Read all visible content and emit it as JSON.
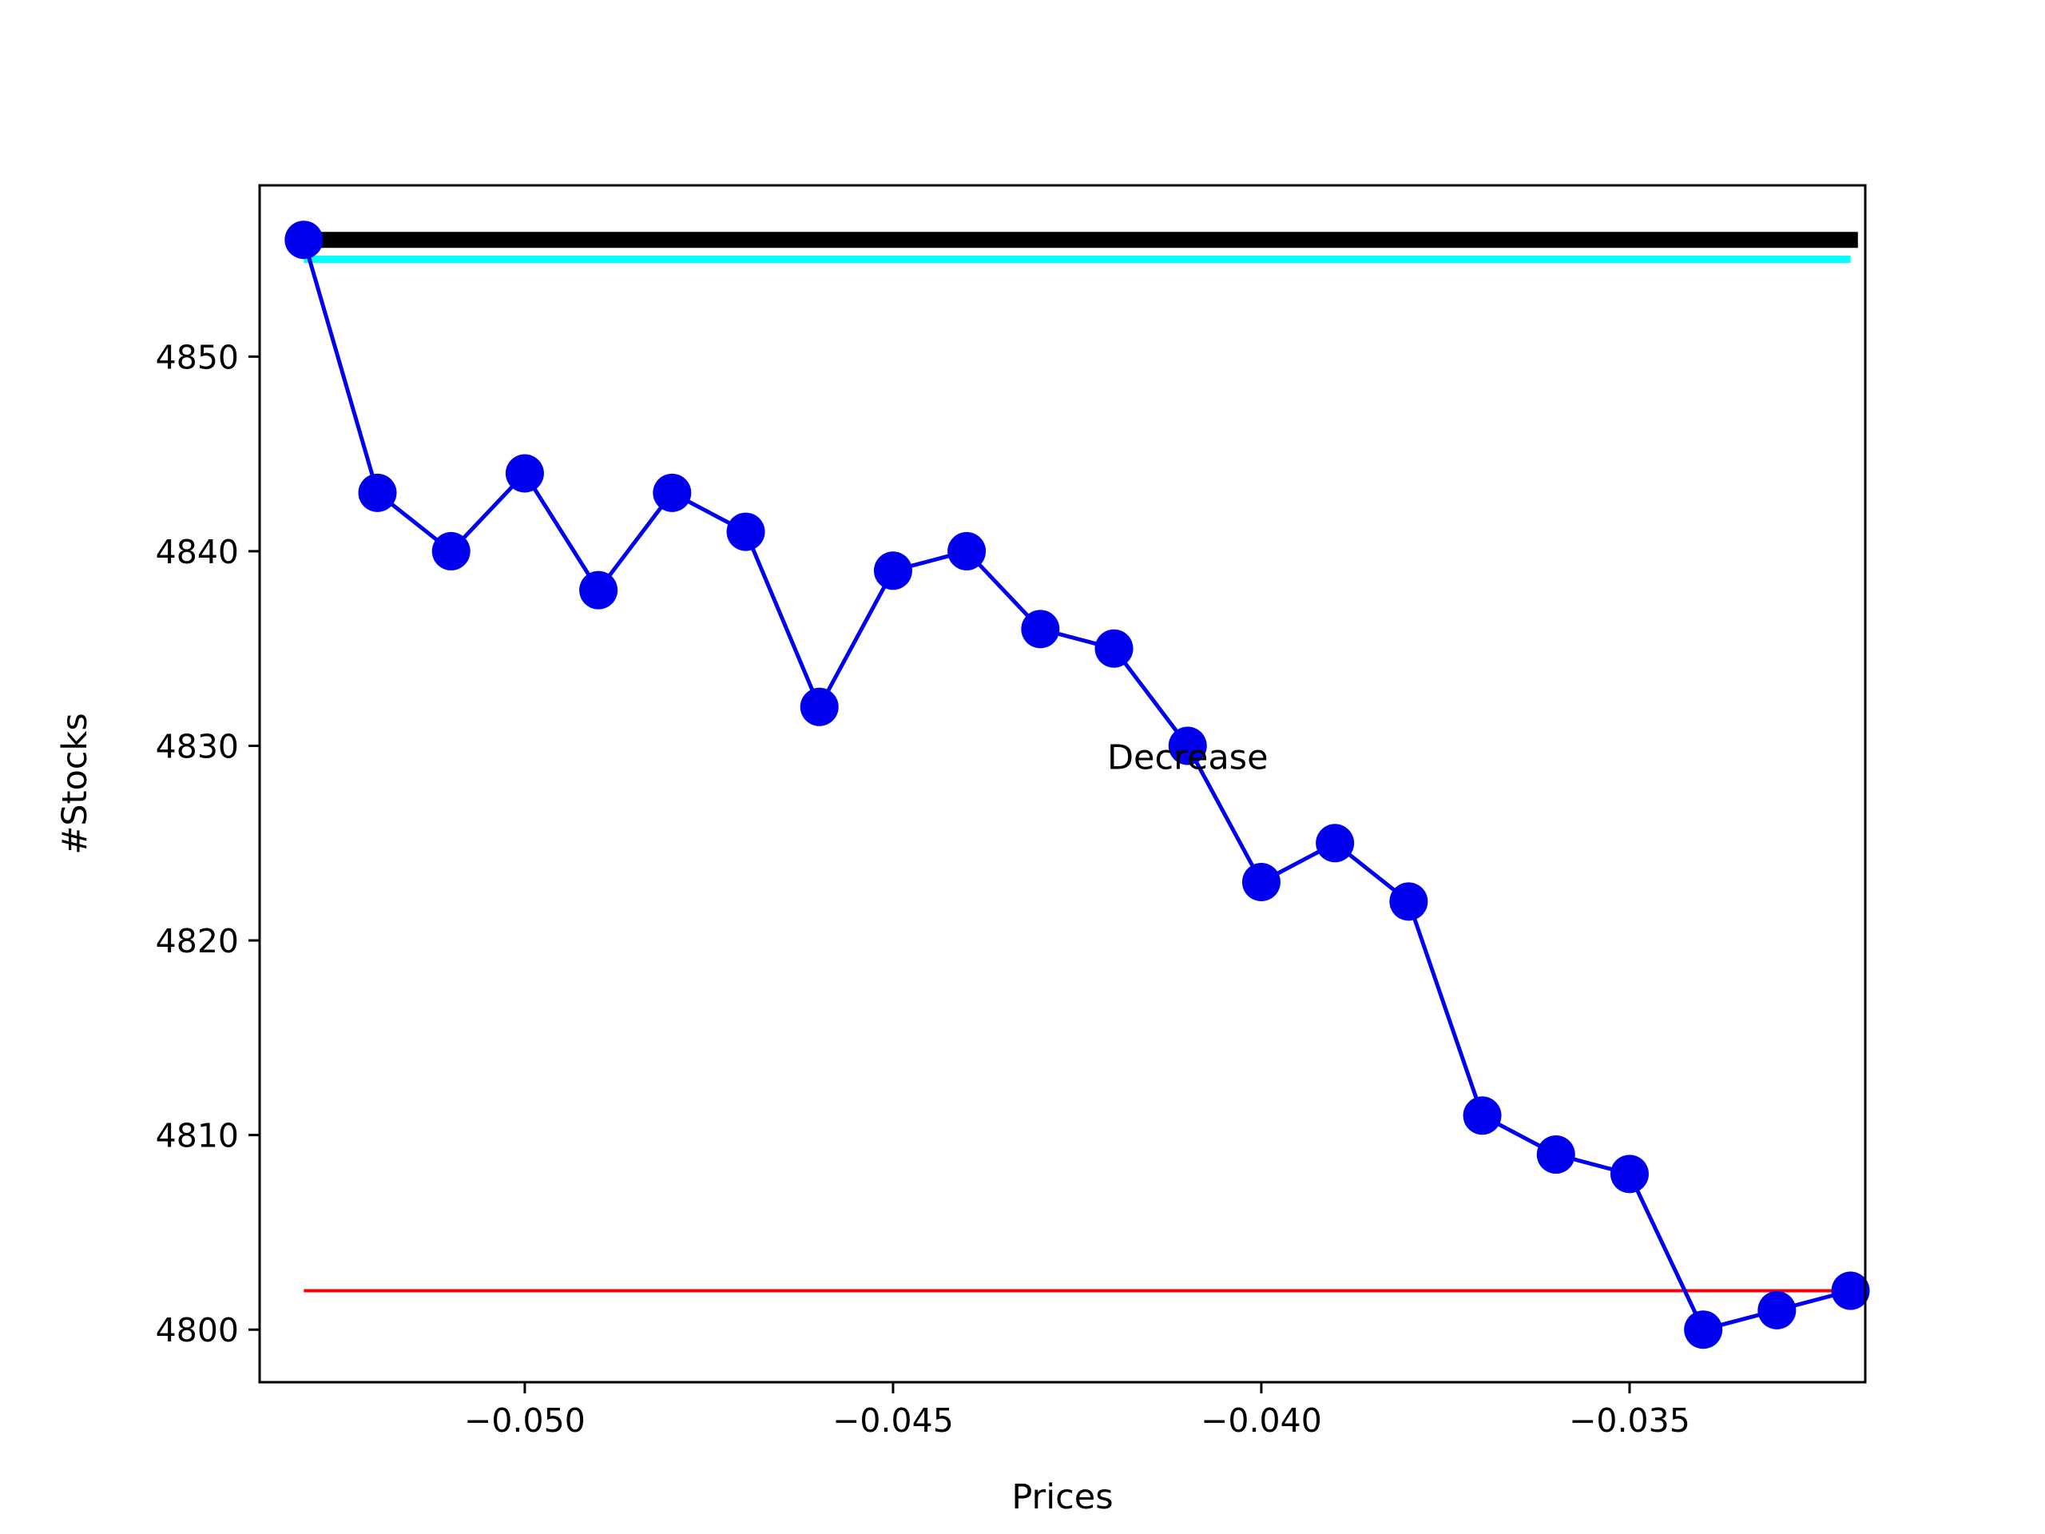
{
  "chart_data": {
    "type": "line",
    "title": "",
    "xlabel": "Prices",
    "ylabel": "#Stocks",
    "xlim": [
      -0.0536,
      -0.0318
    ],
    "ylim": [
      4797.3,
      4858.8
    ],
    "xticks": [
      -0.05,
      -0.045,
      -0.04,
      -0.035
    ],
    "xtick_labels": [
      "−0.050",
      "−0.045",
      "−0.040",
      "−0.035"
    ],
    "yticks": [
      4800,
      4810,
      4820,
      4830,
      4840,
      4850
    ],
    "ytick_labels": [
      "4800",
      "4810",
      "4820",
      "4830",
      "4840",
      "4850"
    ],
    "grid": false,
    "series": [
      {
        "color": "#0000ee",
        "marker": "circle",
        "x": [
          -0.053,
          -0.052,
          -0.051,
          -0.05,
          -0.049,
          -0.048,
          -0.047,
          -0.046,
          -0.045,
          -0.044,
          -0.043,
          -0.042,
          -0.041,
          -0.04,
          -0.039,
          -0.038,
          -0.037,
          -0.036,
          -0.035,
          -0.034,
          -0.033,
          -0.032
        ],
        "y": [
          4856,
          4843,
          4840,
          4844,
          4838,
          4843,
          4841,
          4832,
          4839,
          4840,
          4836,
          4835,
          4830,
          4823,
          4825,
          4822,
          4811,
          4809,
          4808,
          4800,
          4801,
          4802
        ]
      }
    ],
    "reference_lines": [
      {
        "color": "#000000",
        "y": 4856,
        "x_start": -0.053,
        "x_end": -0.0319,
        "weight": "thick"
      },
      {
        "color": "#00ffff",
        "y": 4855,
        "x_start": -0.053,
        "x_end": -0.032,
        "weight": "medium"
      },
      {
        "color": "#ff0000",
        "y": 4802,
        "x_start": -0.053,
        "x_end": -0.032,
        "weight": "thin"
      }
    ],
    "annotations": [
      {
        "text": "Decrease",
        "x": -0.041,
        "y": 4828.8
      }
    ]
  }
}
